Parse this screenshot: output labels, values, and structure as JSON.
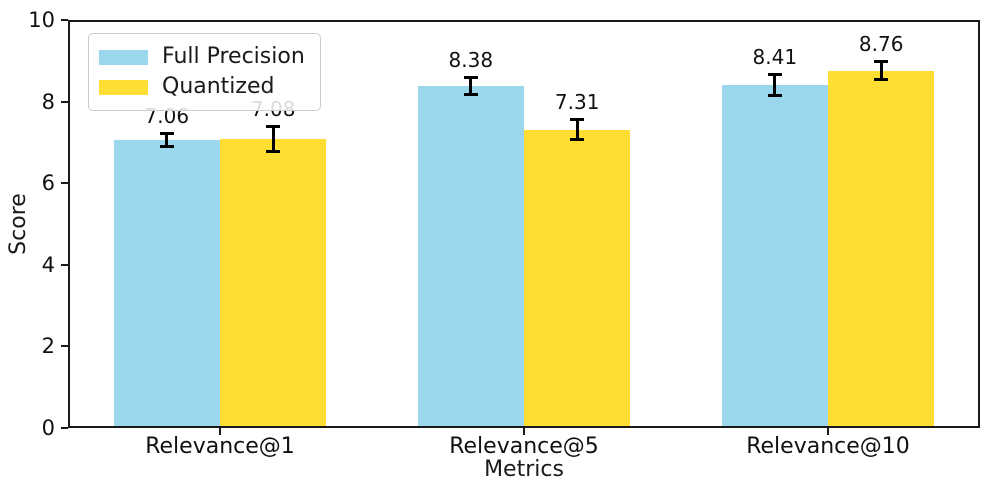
{
  "chart_data": {
    "type": "bar",
    "title": "",
    "xlabel": "Metrics",
    "ylabel": "Score",
    "categories": [
      "Relevance@1",
      "Relevance@5",
      "Relevance@10"
    ],
    "series": [
      {
        "name": "Full Precision",
        "color": "#9AD6EC",
        "values": [
          7.06,
          8.38,
          8.41
        ],
        "value_labels": [
          "7.06",
          "8.38",
          "8.41"
        ],
        "errors": [
          0.15,
          0.2,
          0.25
        ]
      },
      {
        "name": "Quantized",
        "color": "#FFDE33",
        "values": [
          7.08,
          7.31,
          8.76
        ],
        "value_labels": [
          "7.08",
          "7.31",
          "8.76"
        ],
        "errors": [
          0.3,
          0.25,
          0.22
        ]
      }
    ],
    "ylim": [
      0,
      10
    ],
    "yticks": [
      0,
      2,
      4,
      6,
      8,
      10
    ],
    "bar_width_fraction": 0.35,
    "grid": false,
    "legend_position": "upper-left",
    "colors": {
      "axis": "#1a1a1a",
      "error_bar": "#000000",
      "background": "#ffffff",
      "legend_border": "#cccccc"
    }
  }
}
